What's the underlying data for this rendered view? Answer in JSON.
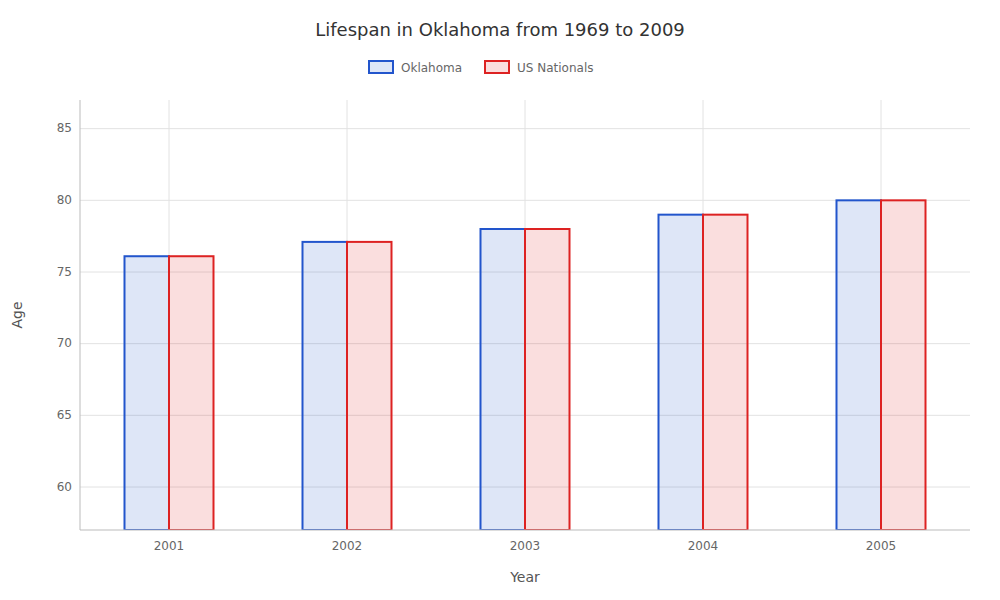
{
  "chart_data": {
    "type": "bar",
    "title": "Lifespan in Oklahoma from 1969 to 2009",
    "xlabel": "Year",
    "ylabel": "Age",
    "categories": [
      "2001",
      "2002",
      "2003",
      "2004",
      "2005"
    ],
    "series": [
      {
        "name": "Oklahoma",
        "color": "#2255cc",
        "values": [
          76.1,
          77.1,
          78.0,
          79.0,
          80.0
        ]
      },
      {
        "name": "US Nationals",
        "color": "#dd2222",
        "values": [
          76.1,
          77.1,
          78.0,
          79.0,
          80.0
        ]
      }
    ],
    "ylim": [
      57,
      87
    ],
    "yticks": [
      60,
      65,
      70,
      75,
      80,
      85
    ],
    "grid": true,
    "legend": "top"
  }
}
